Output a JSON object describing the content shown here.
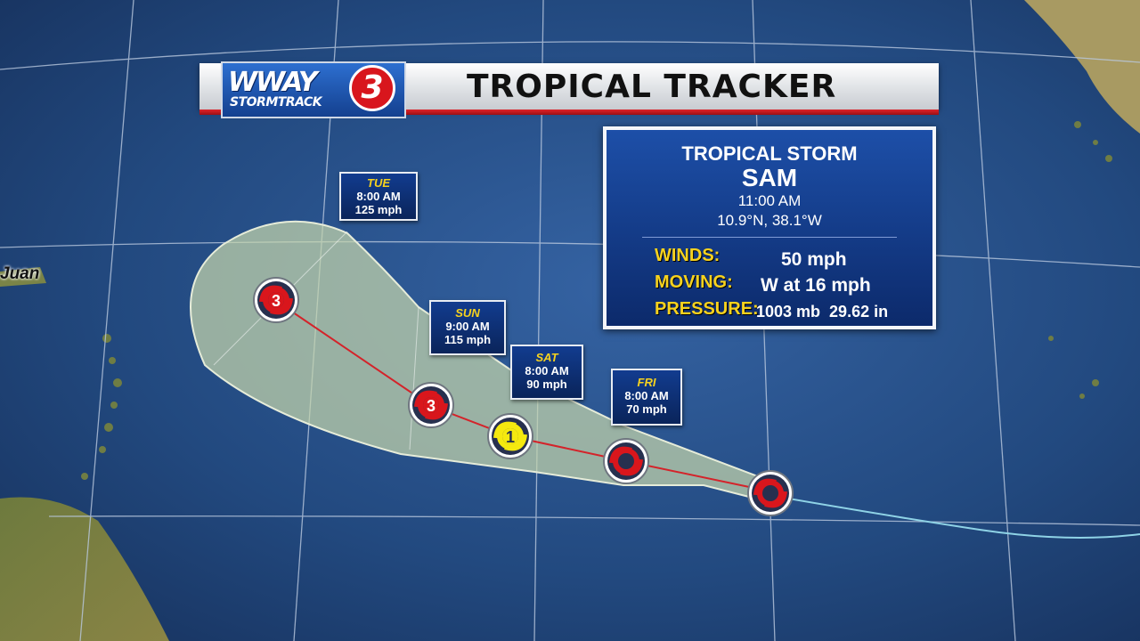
{
  "header": {
    "logo_main": "WWAY",
    "logo_number": "3",
    "logo_sub": "STORMTRACK",
    "title": "TROPICAL TRACKER"
  },
  "storm": {
    "type": "TROPICAL STORM",
    "name": "SAM",
    "time": "11:00 AM",
    "position": "10.9°N, 38.1°W",
    "winds_label": "WINDS:",
    "winds_value": "50 mph",
    "moving_label": "MOVING:",
    "moving_value": "W at 16 mph",
    "pressure_label": "PRESSURE:",
    "pressure_value": "1003 mb  29.62 in"
  },
  "forecasts": [
    {
      "day": "FRI",
      "time": "8:00 AM",
      "wind": "70 mph"
    },
    {
      "day": "SAT",
      "time": "8:00 AM",
      "wind": "90 mph"
    },
    {
      "day": "SUN",
      "time": "9:00 AM",
      "wind": "115 mph"
    },
    {
      "day": "TUE",
      "time": "8:00 AM",
      "wind": "125 mph"
    }
  ],
  "track_points": [
    {
      "category": "",
      "color": "#d9161c"
    },
    {
      "category": "",
      "color": "#d9161c"
    },
    {
      "category": "1",
      "color": "#f5e90f"
    },
    {
      "category": "3",
      "color": "#d9161c"
    },
    {
      "category": "3",
      "color": "#d9161c"
    }
  ],
  "map_label": "Juan",
  "colors": {
    "ocean": "#2a5592",
    "cone": "#b8c9a2",
    "track_line": "#d4232a",
    "label_yellow": "#f7d21e"
  }
}
